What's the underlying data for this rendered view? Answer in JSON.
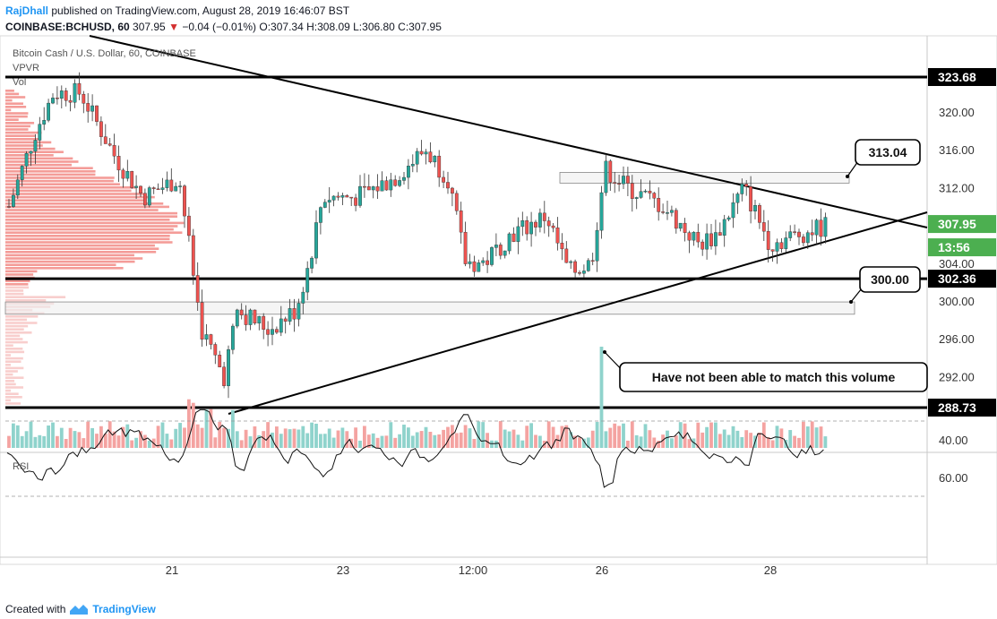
{
  "header": {
    "author": "RajDhall",
    "published": "published on TradingView.com, August 28, 2019 16:46:07 BST",
    "symbol": "COINBASE:BCHUSD, 60",
    "last": "307.95",
    "change": "−0.04 (−0.01%)",
    "ohlc": "O:307.34 H:308.09 L:306.80 C:307.95"
  },
  "legend": {
    "title": "Bitcoin Cash / U.S. Dollar, 60, COINBASE",
    "vpvr": "VPVR",
    "vol": "Vol",
    "rsi": "RSI"
  },
  "footer": {
    "created": "Created with",
    "brand": "TradingView"
  },
  "colors": {
    "up": "#26a69a",
    "down": "#ef5350",
    "vol_up": "#8fd3cc",
    "vol_down": "#f4a3a1",
    "vpvr": "#f28b86"
  },
  "chart_data": {
    "type": "candlestick",
    "title": "Bitcoin Cash / U.S. Dollar, 60, COINBASE",
    "ylim": [
      286,
      327
    ],
    "y_ticks": [
      "320.00",
      "316.00",
      "312.00",
      "304.00",
      "300.00",
      "296.00",
      "292.00"
    ],
    "x_ticks": [
      "21",
      "23",
      "12:00",
      "26",
      "28"
    ],
    "price_tags": [
      "323.68",
      "307.95",
      "13:56",
      "302.36",
      "288.73"
    ],
    "rsi": {
      "ylim": [
        20,
        70
      ],
      "ticks": [
        "60.00",
        "40.00"
      ],
      "levels": [
        70,
        30
      ]
    },
    "horizontal_levels": [
      323.68,
      302.36,
      288.73
    ],
    "zones": [
      {
        "from": 312.8,
        "to": 313.6
      },
      {
        "from": 298.6,
        "to": 299.9
      }
    ],
    "annotations": [
      {
        "text": "313.04"
      },
      {
        "text": "300.00"
      },
      {
        "text": "Have not been able to match this volume"
      }
    ]
  }
}
